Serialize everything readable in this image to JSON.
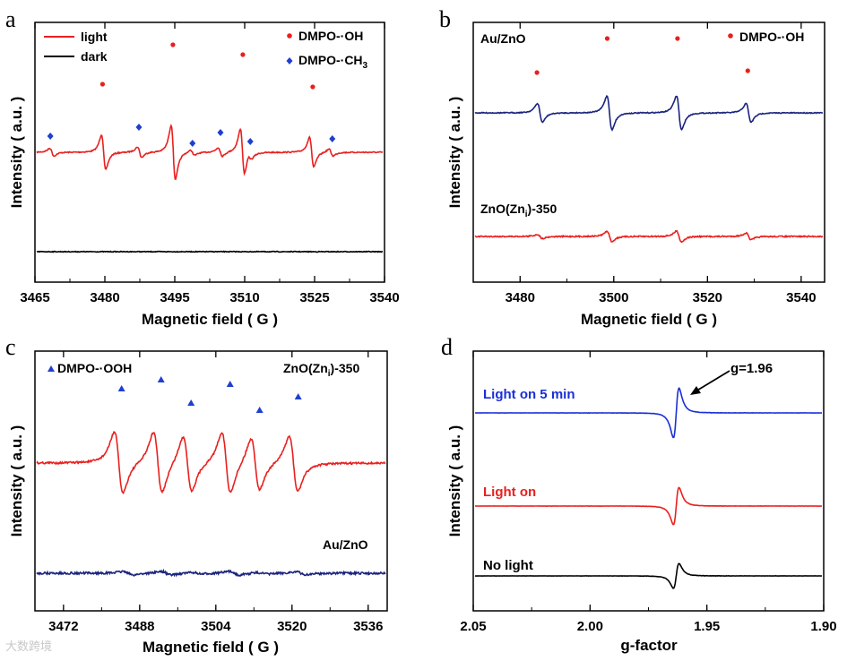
{
  "watermark": "大数跨境",
  "chart_data": [
    {
      "panel": "a",
      "type": "line",
      "xlabel": "Magnetic field ( G )",
      "ylabel": "Intensity ( a.u. )",
      "xlim": [
        3465,
        3540
      ],
      "xticks": [
        "3465",
        "3480",
        "3495",
        "3510",
        "3525",
        "3540"
      ],
      "series": [
        {
          "name": "light",
          "color": "#e8201e",
          "baseline": 0.5,
          "lines": [
            {
              "center": 3479.5,
              "amp": 1.0
            },
            {
              "center": 3494.6,
              "amp": 1.55
            },
            {
              "center": 3509.6,
              "amp": 1.3
            },
            {
              "center": 3524.6,
              "amp": 0.85
            },
            {
              "center": 3468.3,
              "amp": 0.22
            },
            {
              "center": 3487.3,
              "amp": 0.3
            },
            {
              "center": 3498.8,
              "amp": 0.15
            },
            {
              "center": 3504.8,
              "amp": 0.25
            },
            {
              "center": 3511.2,
              "amp": 0.2
            },
            {
              "center": 3528.8,
              "amp": 0.2
            }
          ]
        },
        {
          "name": "dark",
          "color": "#000000",
          "baseline": 0.0,
          "lines": []
        }
      ],
      "legend": [
        {
          "label": "light",
          "color": "#e8201e"
        },
        {
          "label": "dark",
          "color": "#000000"
        }
      ],
      "marker_legend": [
        {
          "label": "DMPO-·OH",
          "symbol": "circle",
          "color": "#e8201e"
        },
        {
          "label": "DMPO-·CH",
          "subscript": "3",
          "symbol": "diamond",
          "color": "#1f3fd0"
        }
      ],
      "markers": [
        {
          "x": 3479.5,
          "series": "oh"
        },
        {
          "x": 3494.6,
          "series": "oh"
        },
        {
          "x": 3509.6,
          "series": "oh"
        },
        {
          "x": 3524.6,
          "series": "oh"
        },
        {
          "x": 3468.3,
          "series": "ch3"
        },
        {
          "x": 3487.3,
          "series": "ch3"
        },
        {
          "x": 3498.8,
          "series": "ch3"
        },
        {
          "x": 3504.8,
          "series": "ch3"
        },
        {
          "x": 3511.2,
          "series": "ch3"
        },
        {
          "x": 3528.8,
          "series": "ch3"
        }
      ]
    },
    {
      "panel": "b",
      "type": "line",
      "xlabel": "Magnetic field ( G )",
      "ylabel": "Intensity ( a.u. )",
      "xlim": [
        3470,
        3545
      ],
      "xticks": [
        "3480",
        "3500",
        "3520",
        "3540"
      ],
      "series": [
        {
          "name": "Au/ZnO",
          "color": "#1a237e",
          "lines": [
            {
              "center": 3484.0,
              "amp": 0.55
            },
            {
              "center": 3499.0,
              "amp": 1.0
            },
            {
              "center": 3514.0,
              "amp": 1.0
            },
            {
              "center": 3529.0,
              "amp": 0.55
            }
          ]
        },
        {
          "name": "ZnO(Zni)-350",
          "color": "#e8201e",
          "lines": [
            {
              "center": 3484.0,
              "amp": 0.12
            },
            {
              "center": 3499.0,
              "amp": 0.3
            },
            {
              "center": 3514.0,
              "amp": 0.32
            },
            {
              "center": 3529.0,
              "amp": 0.2
            }
          ]
        }
      ],
      "labels": {
        "top": "Au/ZnO",
        "bottom_main": "ZnO(Zn",
        "bottom_sub": "i",
        "bottom_tail": ")-350"
      },
      "marker_legend": [
        {
          "label": "DMPO-·OH",
          "symbol": "circle",
          "color": "#e8201e"
        }
      ],
      "markers": [
        {
          "x": 3483.6
        },
        {
          "x": 3498.6
        },
        {
          "x": 3513.6
        },
        {
          "x": 3528.6
        }
      ]
    },
    {
      "panel": "c",
      "type": "line",
      "xlabel": "Magnetic field ( G )",
      "ylabel": "Intensity ( a.u. )",
      "xlim": [
        3466,
        3540
      ],
      "xticks": [
        "3472",
        "3488",
        "3504",
        "3520",
        "3536"
      ],
      "series": [
        {
          "name": "ZnO(Zni)-350",
          "color": "#e8201e",
          "lines": [
            {
              "center": 3483.4,
              "amp": 1.0
            },
            {
              "center": 3491.7,
              "amp": 1.0
            },
            {
              "center": 3498.0,
              "amp": 0.9
            },
            {
              "center": 3506.2,
              "amp": 1.0
            },
            {
              "center": 3512.4,
              "amp": 0.85
            },
            {
              "center": 3520.5,
              "amp": 0.9
            }
          ]
        },
        {
          "name": "Au/ZnO",
          "color": "#1a237e",
          "lines": [
            {
              "center": 3485.4,
              "amp": 0.12
            },
            {
              "center": 3493.5,
              "amp": 0.12
            },
            {
              "center": 3500.0,
              "amp": 0.06
            },
            {
              "center": 3508.0,
              "amp": 0.12
            },
            {
              "center": 3514.0,
              "amp": 0.05
            },
            {
              "center": 3522.0,
              "amp": 0.1
            }
          ]
        }
      ],
      "labels": {
        "top_main": "ZnO(Zn",
        "top_sub": "i",
        "top_tail": ")-350",
        "bottom": "Au/ZnO"
      },
      "marker_legend": [
        {
          "label": "DMPO-·OOH",
          "symbol": "triangle",
          "color": "#1f3fd0"
        }
      ],
      "markers": [
        {
          "x": 3484.2
        },
        {
          "x": 3492.5
        },
        {
          "x": 3498.8
        },
        {
          "x": 3507.0
        },
        {
          "x": 3513.2
        },
        {
          "x": 3521.3
        }
      ]
    },
    {
      "panel": "d",
      "type": "line",
      "xlabel": "g-factor",
      "ylabel": "Intensity ( a.u. )",
      "xlim": [
        2.05,
        1.9
      ],
      "xticks": [
        "2.05",
        "2.00",
        "1.95",
        "1.90"
      ],
      "series": [
        {
          "name": "Light on 5 min",
          "color": "#1a2fd6",
          "center": 1.963,
          "amp": 1.0
        },
        {
          "name": "Light on",
          "color": "#e8201e",
          "center": 1.963,
          "amp": 0.75
        },
        {
          "name": "No light",
          "color": "#000000",
          "center": 1.963,
          "amp": 0.5
        }
      ],
      "annotation": "g=1.96"
    }
  ]
}
